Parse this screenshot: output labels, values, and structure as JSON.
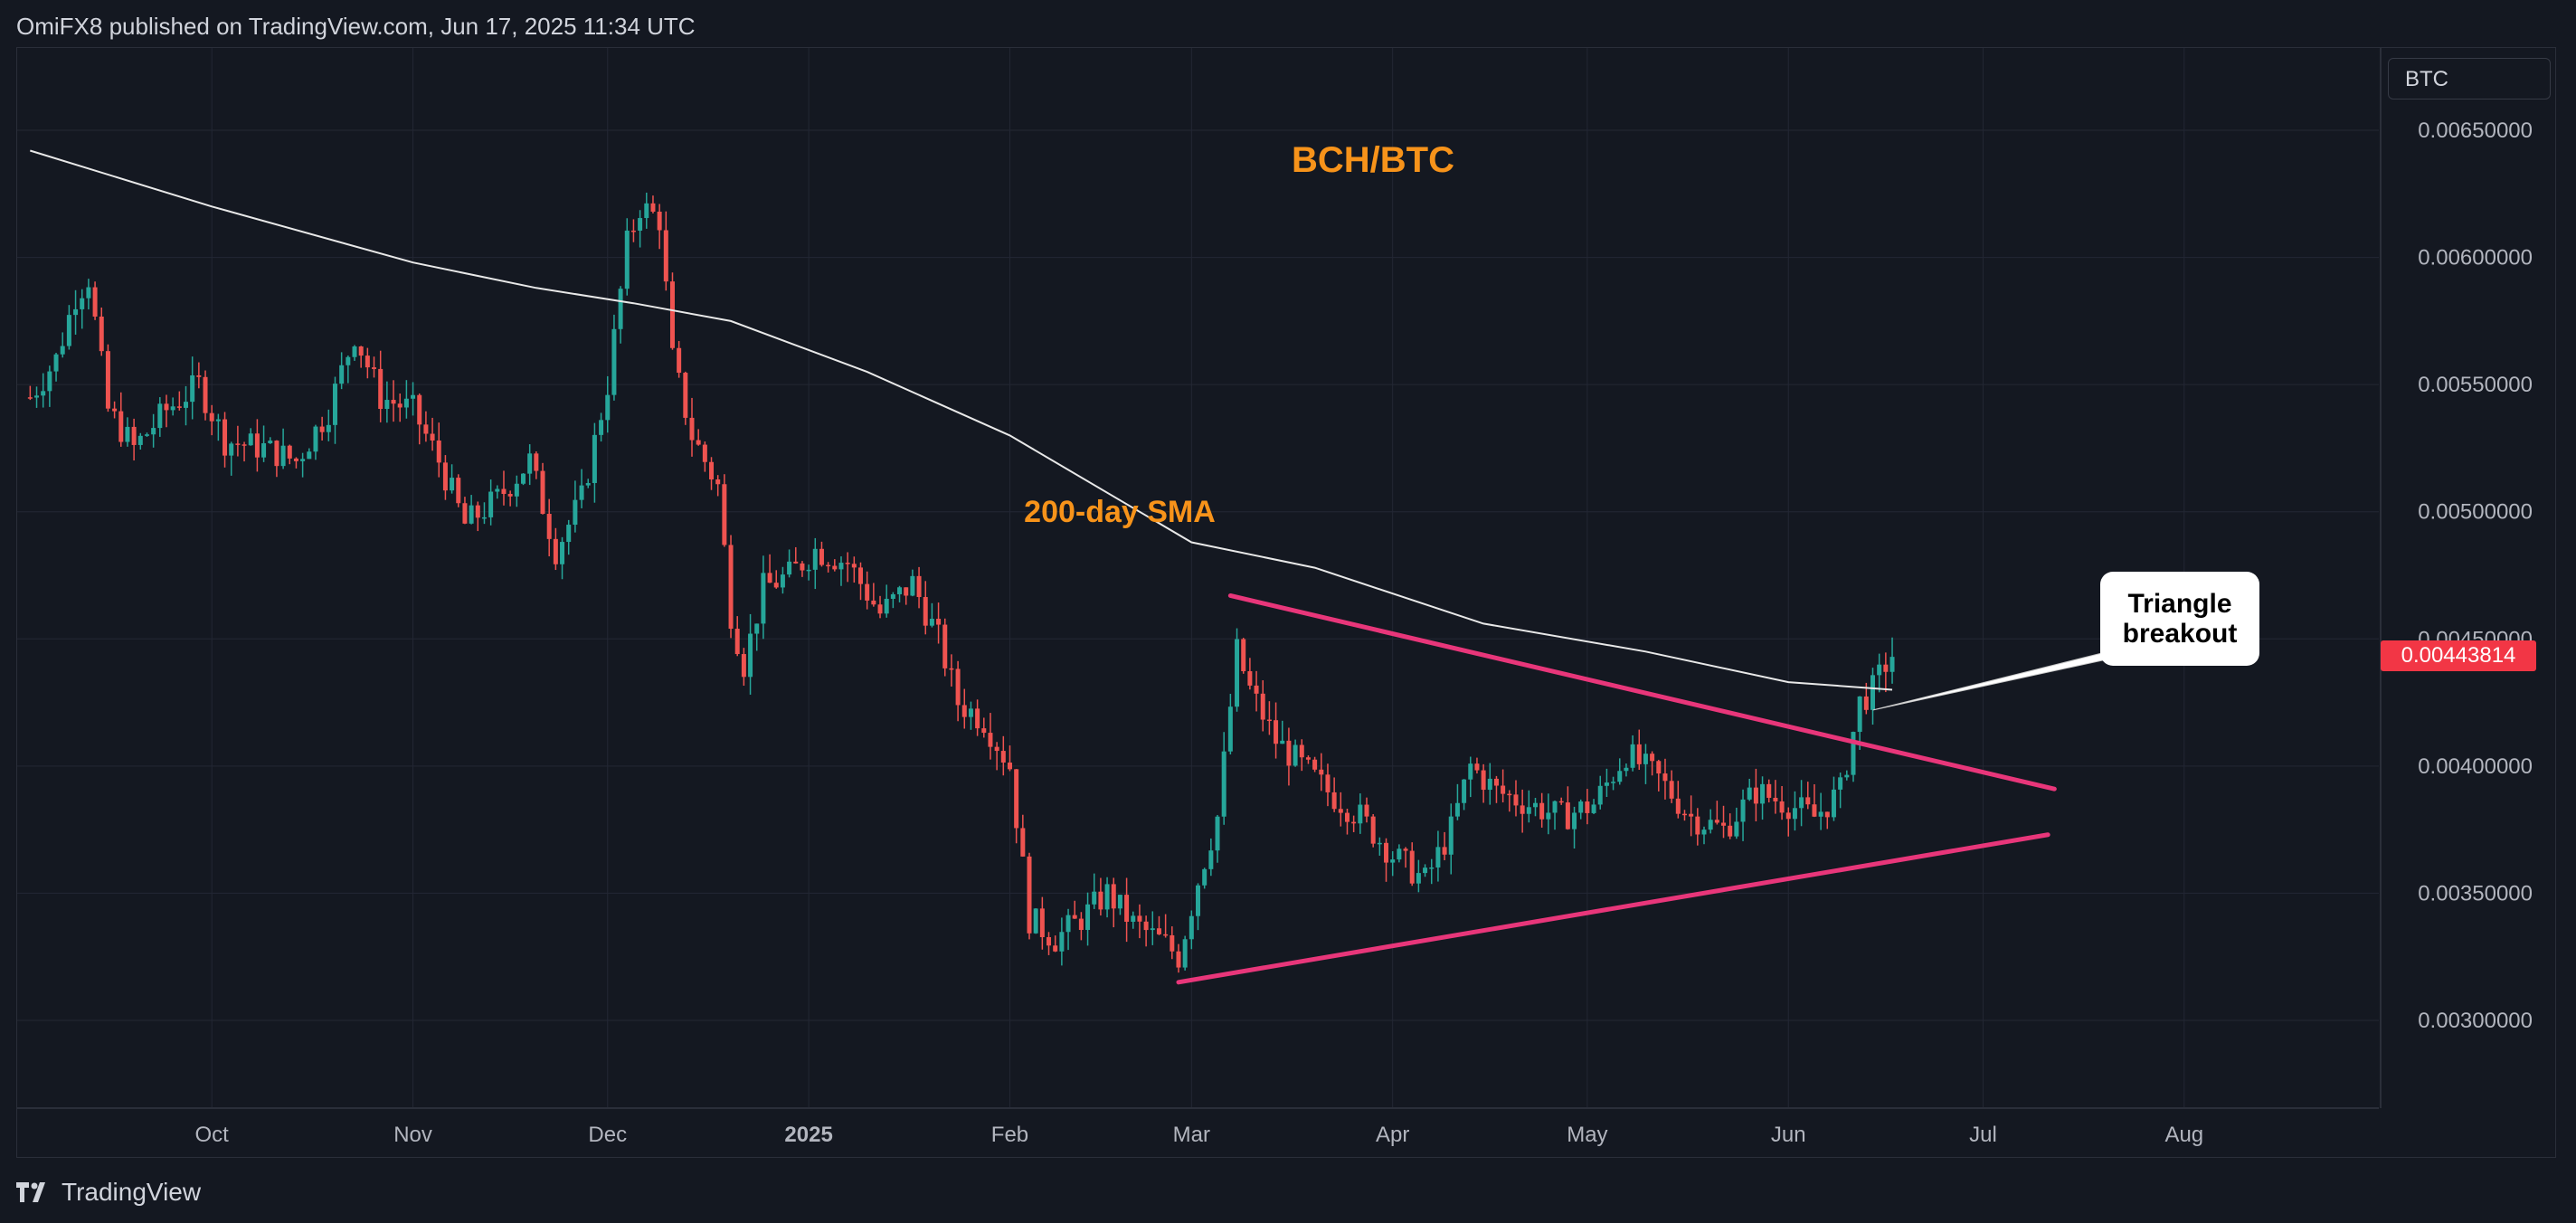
{
  "header": {
    "publish_line": "OmiFX8 published on TradingView.com, Jun 17, 2025 11:34 UTC"
  },
  "footer": {
    "brand": "TradingView"
  },
  "symbol_box": {
    "label": "BTC"
  },
  "last_price": {
    "label": "0.00443814",
    "color": "#f23645"
  },
  "colors": {
    "up": "#26a69a",
    "down": "#ef5350",
    "sma": "#e8e8e8",
    "triangle": "#e8367a",
    "annotation": "#f7931a",
    "background": "#141821",
    "grid": "#232734"
  },
  "chart_data": {
    "type": "candlestick",
    "title": "BCH/BTC",
    "y_ticks": [
      "0.00650000",
      "0.00600000",
      "0.00550000",
      "0.00500000",
      "0.00450000",
      "0.00400000",
      "0.00350000",
      "0.00300000"
    ],
    "x_ticks": [
      "Oct",
      "Nov",
      "Dec",
      "2025",
      "Feb",
      "Mar",
      "Apr",
      "May",
      "Jun",
      "Jul",
      "Aug"
    ],
    "x_range": [
      "2024-09-03",
      "2025-08-31"
    ],
    "ylim": [
      0.0027,
      0.0068
    ],
    "grid": true,
    "closes": [
      [
        "2024-09-03",
        0.00545
      ],
      [
        "2024-09-07",
        0.0056
      ],
      [
        "2024-09-10",
        0.00585
      ],
      [
        "2024-09-12",
        0.00592
      ],
      [
        "2024-09-15",
        0.0054
      ],
      [
        "2024-09-19",
        0.00525
      ],
      [
        "2024-09-24",
        0.0054
      ],
      [
        "2024-09-29",
        0.0055
      ],
      [
        "2024-10-03",
        0.00528
      ],
      [
        "2024-10-09",
        0.00525
      ],
      [
        "2024-10-14",
        0.0052
      ],
      [
        "2024-10-19",
        0.0054
      ],
      [
        "2024-10-23",
        0.0057
      ],
      [
        "2024-10-27",
        0.00545
      ],
      [
        "2024-11-01",
        0.0054
      ],
      [
        "2024-11-05",
        0.0052
      ],
      [
        "2024-11-09",
        0.00495
      ],
      [
        "2024-11-14",
        0.00505
      ],
      [
        "2024-11-19",
        0.0052
      ],
      [
        "2024-11-23",
        0.00485
      ],
      [
        "2024-11-27",
        0.00505
      ],
      [
        "2024-12-01",
        0.0055
      ],
      [
        "2024-12-04",
        0.00605
      ],
      [
        "2024-12-06",
        0.0062
      ],
      [
        "2024-12-09",
        0.00615
      ],
      [
        "2024-12-11",
        0.0056
      ],
      [
        "2024-12-14",
        0.0053
      ],
      [
        "2024-12-18",
        0.0051
      ],
      [
        "2024-12-20",
        0.0046
      ],
      [
        "2024-12-22",
        0.0044
      ],
      [
        "2024-12-25",
        0.0047
      ],
      [
        "2024-12-29",
        0.00475
      ],
      [
        "2025-01-02",
        0.00485
      ],
      [
        "2025-01-07",
        0.0048
      ],
      [
        "2025-01-12",
        0.0046
      ],
      [
        "2025-01-17",
        0.00472
      ],
      [
        "2025-01-21",
        0.0045
      ],
      [
        "2025-01-24",
        0.00425
      ],
      [
        "2025-01-28",
        0.00418
      ],
      [
        "2025-02-01",
        0.004
      ],
      [
        "2025-02-04",
        0.0034
      ],
      [
        "2025-02-08",
        0.00332
      ],
      [
        "2025-02-12",
        0.0034
      ],
      [
        "2025-02-16",
        0.0035
      ],
      [
        "2025-02-20",
        0.00338
      ],
      [
        "2025-02-25",
        0.0033
      ],
      [
        "2025-02-27",
        0.00325
      ],
      [
        "2025-03-02",
        0.00355
      ],
      [
        "2025-03-05",
        0.0038
      ],
      [
        "2025-03-08",
        0.00445
      ],
      [
        "2025-03-10",
        0.0043
      ],
      [
        "2025-03-14",
        0.0041
      ],
      [
        "2025-03-18",
        0.004
      ],
      [
        "2025-03-22",
        0.0039
      ],
      [
        "2025-03-27",
        0.0038
      ],
      [
        "2025-04-01",
        0.00365
      ],
      [
        "2025-04-06",
        0.00355
      ],
      [
        "2025-04-10",
        0.00375
      ],
      [
        "2025-04-13",
        0.004
      ],
      [
        "2025-04-17",
        0.0039
      ],
      [
        "2025-04-22",
        0.00385
      ],
      [
        "2025-04-27",
        0.0038
      ],
      [
        "2025-05-02",
        0.00385
      ],
      [
        "2025-05-07",
        0.00405
      ],
      [
        "2025-05-12",
        0.00395
      ],
      [
        "2025-05-17",
        0.0038
      ],
      [
        "2025-05-22",
        0.00375
      ],
      [
        "2025-05-27",
        0.0039
      ],
      [
        "2025-06-01",
        0.00385
      ],
      [
        "2025-06-05",
        0.0038
      ],
      [
        "2025-06-09",
        0.0039
      ],
      [
        "2025-06-12",
        0.00425
      ],
      [
        "2025-06-14",
        0.0043
      ],
      [
        "2025-06-16",
        0.0044
      ],
      [
        "2025-06-17",
        0.00443814
      ]
    ],
    "sma_200": {
      "label": "200-day SMA",
      "points": [
        [
          "2024-09-03",
          0.00642
        ],
        [
          "2024-10-01",
          0.0062
        ],
        [
          "2024-11-01",
          0.00598
        ],
        [
          "2024-11-20",
          0.00588
        ],
        [
          "2024-12-05",
          0.00582
        ],
        [
          "2024-12-20",
          0.00575
        ],
        [
          "2025-01-10",
          0.00555
        ],
        [
          "2025-02-01",
          0.0053
        ],
        [
          "2025-03-01",
          0.00488
        ],
        [
          "2025-03-20",
          0.00478
        ],
        [
          "2025-04-15",
          0.00456
        ],
        [
          "2025-05-10",
          0.00445
        ],
        [
          "2025-06-01",
          0.00433
        ],
        [
          "2025-06-17",
          0.0043
        ]
      ]
    },
    "triangle_lines": [
      {
        "from": [
          "2025-03-07",
          0.00467
        ],
        "to": [
          "2025-07-12",
          0.00391
        ]
      },
      {
        "from": [
          "2025-02-27",
          0.00315
        ],
        "to": [
          "2025-07-11",
          0.00373
        ]
      }
    ],
    "annotations": [
      {
        "text": "200-day SMA",
        "color": "#f7931a"
      },
      {
        "text": "Triangle breakout",
        "lines": [
          "Triangle",
          "breakout"
        ]
      }
    ]
  }
}
